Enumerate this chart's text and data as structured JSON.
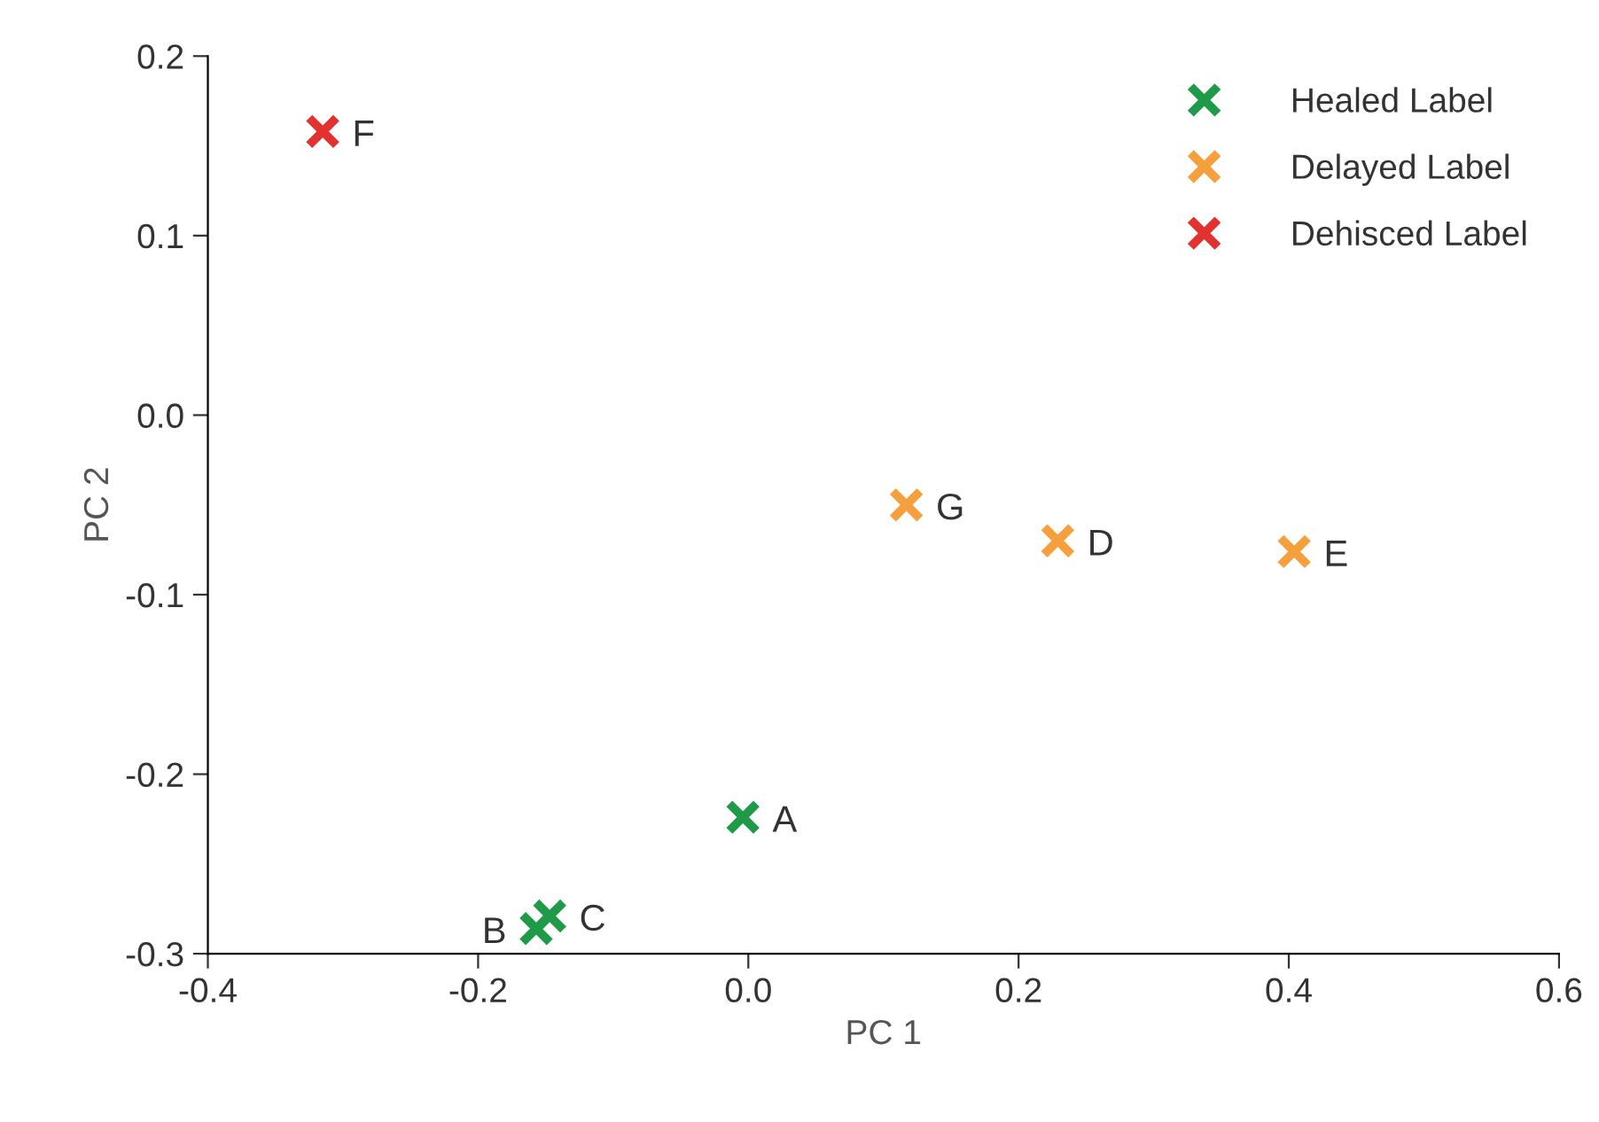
{
  "chart_data": {
    "type": "scatter",
    "xlabel": "PC 1",
    "ylabel": "PC 2",
    "series": [
      {
        "name": "Healed Label",
        "color": "#1e9a48",
        "x": [
          -0.004,
          -0.157,
          -0.147
        ],
        "values": [
          -0.224,
          -0.286,
          -0.279
        ]
      },
      {
        "name": "Delayed Label",
        "color": "#f5a03c",
        "x": [
          0.117,
          0.229,
          0.404
        ],
        "values": [
          -0.05,
          -0.07,
          -0.076
        ]
      },
      {
        "name": "Dehisced Label",
        "color": "#e2312f",
        "x": [
          -0.315
        ],
        "values": [
          0.158
        ]
      }
    ],
    "annotations": [
      {
        "text": "A",
        "x": -0.004,
        "y": -0.224
      },
      {
        "text": "B",
        "x": -0.157,
        "y": -0.286
      },
      {
        "text": "C",
        "x": -0.147,
        "y": -0.279
      },
      {
        "text": "G",
        "x": 0.117,
        "y": -0.05
      },
      {
        "text": "D",
        "x": 0.229,
        "y": -0.07
      },
      {
        "text": "E",
        "x": 0.404,
        "y": -0.076
      },
      {
        "text": "F",
        "x": -0.315,
        "y": 0.158
      }
    ],
    "xlim": [
      -0.4,
      0.6
    ],
    "ylim": [
      -0.3,
      0.2
    ],
    "xticks": [
      {
        "value": -0.4,
        "label": "-0.4"
      },
      {
        "value": -0.2,
        "label": "-0.2"
      },
      {
        "value": 0,
        "label": "0.0"
      },
      {
        "value": 0.2,
        "label": "0.2"
      },
      {
        "value": 0.4,
        "label": "0.4"
      },
      {
        "value": 0.6,
        "label": "0.6"
      }
    ],
    "yticks": [
      {
        "value": -0.3,
        "label": "-0.3"
      },
      {
        "value": -0.2,
        "label": "-0.2"
      },
      {
        "value": -0.1,
        "label": "-0.1"
      },
      {
        "value": 0,
        "label": "0.0"
      },
      {
        "value": 0.1,
        "label": "0.1"
      },
      {
        "value": 0.2,
        "label": "0.2"
      }
    ],
    "marker": "cross",
    "legend": "top right",
    "grid": false
  }
}
